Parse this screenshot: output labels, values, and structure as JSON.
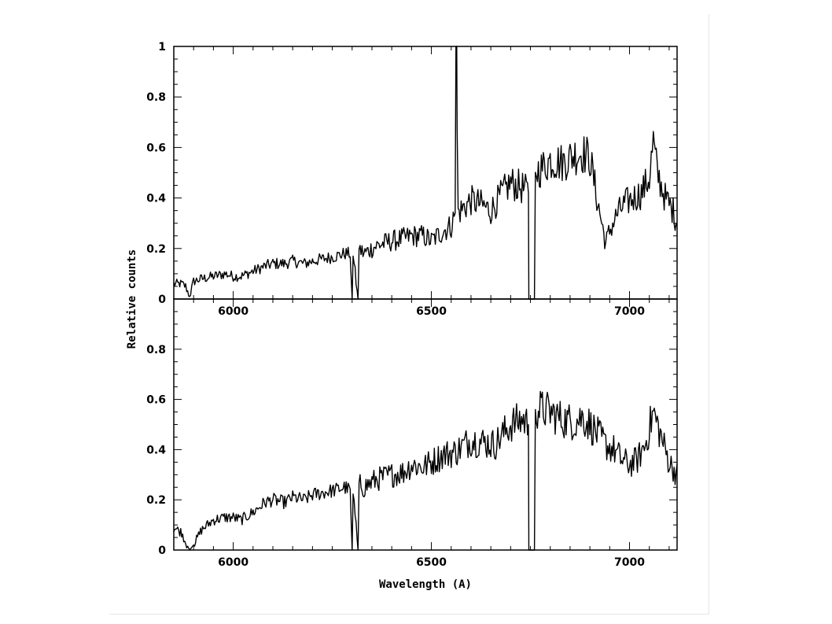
{
  "chart_data": [
    {
      "type": "line",
      "panel": "top",
      "title": "",
      "xlabel": "",
      "ylabel": "Relative counts",
      "xlim": [
        5850,
        7120
      ],
      "ylim": [
        0,
        1
      ],
      "xticks": [
        6000,
        6500,
        7000
      ],
      "yticks": [
        0,
        0.2,
        0.4,
        0.6,
        0.8,
        1
      ],
      "ytick_labels": [
        "0",
        "0.2",
        "0.4",
        "0.6",
        "0.8",
        "1"
      ],
      "grid": false,
      "series": [
        {
          "color": "#000000",
          "x": [
            5850,
            5870,
            5880,
            5890,
            5900,
            5920,
            5950,
            5980,
            6000,
            6020,
            6050,
            6080,
            6100,
            6130,
            6150,
            6180,
            6200,
            6230,
            6260,
            6280,
            6295,
            6300,
            6301,
            6315,
            6316,
            6330,
            6360,
            6400,
            6430,
            6450,
            6480,
            6500,
            6530,
            6550,
            6560,
            6562,
            6564,
            6566,
            6580,
            6600,
            6620,
            6650,
            6680,
            6700,
            6730,
            6745,
            6746,
            6760,
            6761,
            6780,
            6800,
            6830,
            6860,
            6880,
            6900,
            6920,
            6940,
            6950,
            6970,
            6990,
            7010,
            7030,
            7050,
            7060,
            7070,
            7090,
            7110,
            7120
          ],
          "y": [
            0.06,
            0.06,
            0.05,
            0.01,
            0.07,
            0.08,
            0.09,
            0.1,
            0.09,
            0.09,
            0.11,
            0.13,
            0.14,
            0.14,
            0.15,
            0.14,
            0.15,
            0.16,
            0.17,
            0.18,
            0.18,
            0.0,
            0.19,
            0.0,
            0.2,
            0.18,
            0.21,
            0.23,
            0.24,
            0.25,
            0.25,
            0.23,
            0.27,
            0.29,
            0.34,
            1.0,
            1.0,
            0.34,
            0.36,
            0.39,
            0.38,
            0.35,
            0.42,
            0.46,
            0.44,
            0.42,
            0.0,
            0.0,
            0.5,
            0.52,
            0.55,
            0.54,
            0.57,
            0.58,
            0.56,
            0.38,
            0.22,
            0.27,
            0.34,
            0.38,
            0.4,
            0.42,
            0.48,
            0.62,
            0.5,
            0.4,
            0.35,
            0.3
          ]
        }
      ]
    },
    {
      "type": "line",
      "panel": "bottom",
      "title": "",
      "xlabel": "Wavelength (A)",
      "ylabel": "Relative counts",
      "xlim": [
        5850,
        7120
      ],
      "ylim": [
        0,
        1
      ],
      "xticks": [
        6000,
        6500,
        7000
      ],
      "yticks": [
        0,
        0.2,
        0.4,
        0.6,
        0.8
      ],
      "ytick_labels": [
        "0",
        "0.2",
        "0.4",
        "0.6",
        "0.8"
      ],
      "grid": false,
      "series": [
        {
          "color": "#000000",
          "x": [
            5850,
            5870,
            5880,
            5890,
            5900,
            5920,
            5950,
            5980,
            6000,
            6020,
            6050,
            6080,
            6100,
            6130,
            6150,
            6180,
            6200,
            6230,
            6260,
            6280,
            6295,
            6300,
            6301,
            6315,
            6316,
            6330,
            6360,
            6400,
            6430,
            6450,
            6480,
            6500,
            6530,
            6560,
            6600,
            6630,
            6660,
            6700,
            6730,
            6745,
            6746,
            6760,
            6761,
            6780,
            6800,
            6830,
            6860,
            6880,
            6900,
            6920,
            6940,
            6960,
            6980,
            7000,
            7020,
            7040,
            7060,
            7080,
            7100,
            7120
          ],
          "y": [
            0.09,
            0.07,
            0.03,
            0.0,
            0.02,
            0.08,
            0.12,
            0.13,
            0.13,
            0.12,
            0.15,
            0.19,
            0.2,
            0.19,
            0.21,
            0.2,
            0.22,
            0.23,
            0.24,
            0.25,
            0.24,
            0.0,
            0.25,
            0.0,
            0.27,
            0.25,
            0.28,
            0.3,
            0.31,
            0.34,
            0.33,
            0.35,
            0.38,
            0.39,
            0.44,
            0.43,
            0.42,
            0.5,
            0.52,
            0.5,
            0.0,
            0.0,
            0.56,
            0.56,
            0.55,
            0.52,
            0.51,
            0.53,
            0.5,
            0.46,
            0.42,
            0.4,
            0.36,
            0.34,
            0.36,
            0.42,
            0.55,
            0.45,
            0.35,
            0.3
          ]
        }
      ]
    }
  ]
}
